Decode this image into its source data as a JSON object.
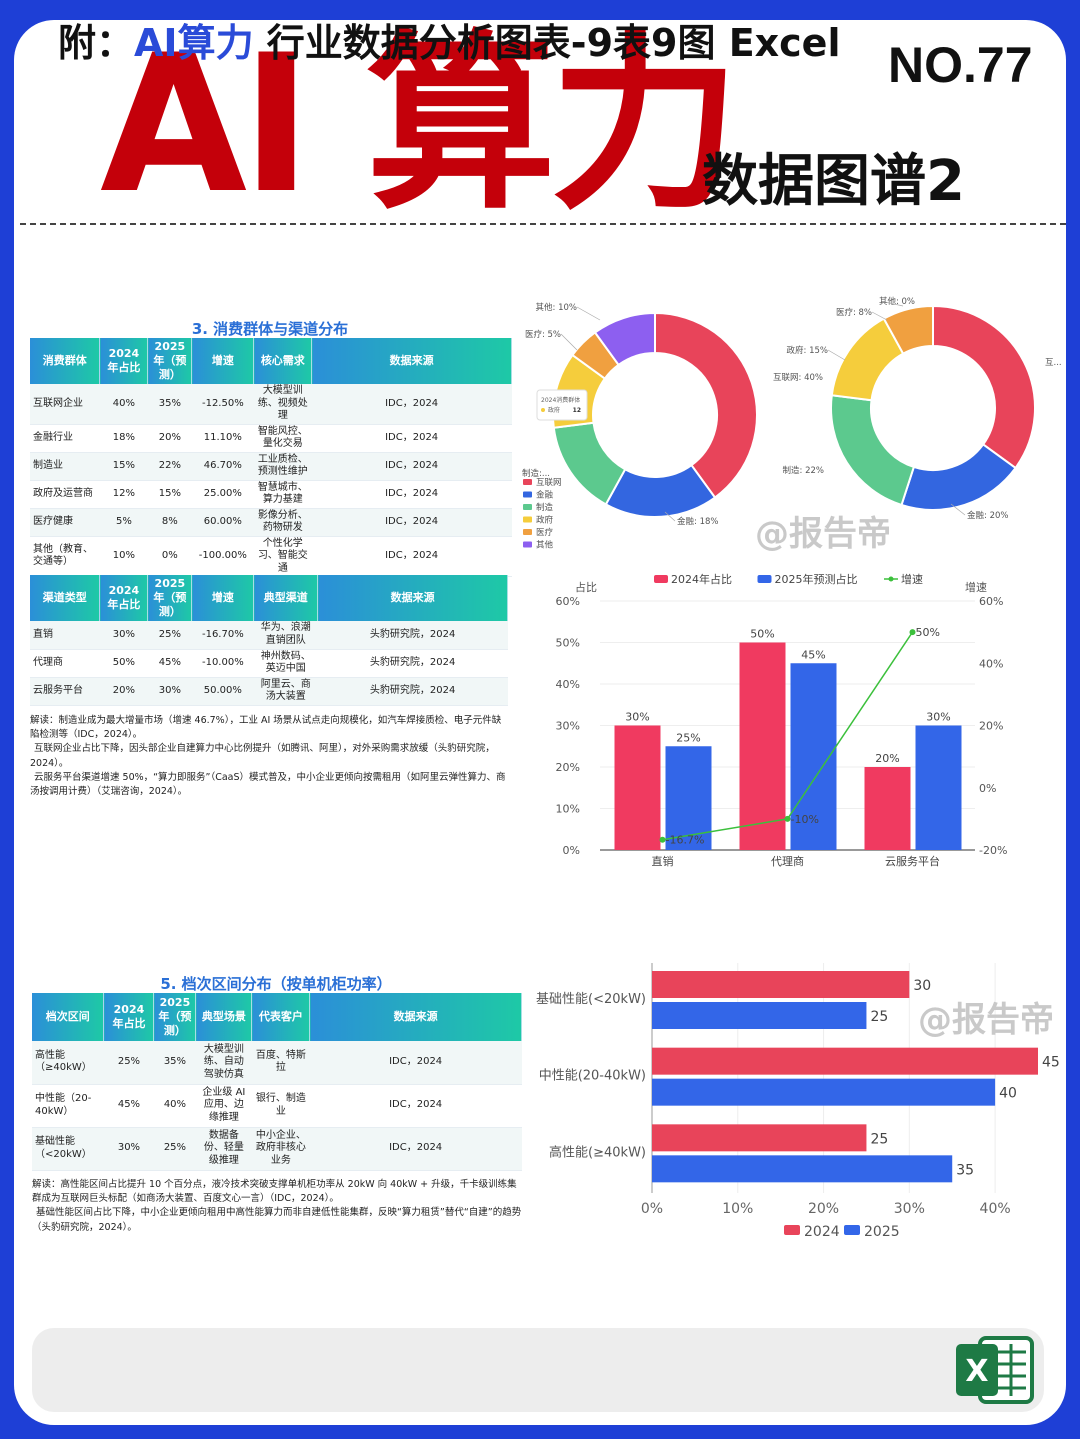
{
  "header": {
    "title": "AI 算力",
    "no": "NO.77",
    "subtitle": "数据图谱2"
  },
  "table3": {
    "title": "3. 消费群体与渠道分布",
    "headers": [
      "消费群体",
      "2024 年占比",
      "2025 年（预测）",
      "增速",
      "核心需求",
      "数据来源"
    ],
    "rows": [
      [
        "互联网企业",
        "40%",
        "35%",
        "-12.50%",
        "大模型训练、视频处理",
        "IDC，2024"
      ],
      [
        "金融行业",
        "18%",
        "20%",
        "11.10%",
        "智能风控、量化交易",
        "IDC，2024"
      ],
      [
        "制造业",
        "15%",
        "22%",
        "46.70%",
        "工业质检、预测性维护",
        "IDC，2024"
      ],
      [
        "政府及运营商",
        "12%",
        "15%",
        "25.00%",
        "智慧城市、算力基建",
        "IDC，2024"
      ],
      [
        "医疗健康",
        "5%",
        "8%",
        "60.00%",
        "影像分析、药物研发",
        "IDC，2024"
      ],
      [
        "其他（教育、交通等）",
        "10%",
        "0%",
        "-100.00%",
        "个性化学习、智能交通",
        "IDC，2024"
      ]
    ]
  },
  "table4": {
    "headers": [
      "渠道类型",
      "2024 年占比",
      "2025 年（预测）",
      "增速",
      "典型渠道",
      "数据来源"
    ],
    "rows": [
      [
        "直销",
        "30%",
        "25%",
        "-16.70%",
        "华为、浪潮直销团队",
        "头豹研究院，2024"
      ],
      [
        "代理商",
        "50%",
        "45%",
        "-10.00%",
        "神州数码、英迈中国",
        "头豹研究院，2024"
      ],
      [
        "云服务平台",
        "20%",
        "30%",
        "50.00%",
        "阿里云、商汤大装置",
        "头豹研究院，2024"
      ]
    ],
    "note": [
      "解读：制造业成为最大增量市场（增速 46.7%），工业 AI 场景从试点走向规模化，如汽车焊接质检、电子元件缺陷检测等（IDC，2024）。",
      "互联网企业占比下降，因头部企业自建算力中心比例提升（如腾讯、阿里），对外采购需求放缓（头豹研究院，2024）。",
      "云服务平台渠道增速 50%，“算力即服务”（CaaS）模式普及，中小企业更倾向按需租用（如阿里云弹性算力、商汤按调用计费）（艾瑞咨询，2024）。"
    ]
  },
  "table5": {
    "title": "5. 档次区间分布（按单机柜功率）",
    "headers": [
      "档次区间",
      "2024 年占比",
      "2025 年（预测）",
      "典型场景",
      "代表客户",
      "数据来源"
    ],
    "rows": [
      [
        "高性能（≥40kW）",
        "25%",
        "35%",
        "大模型训练、自动驾驶仿真",
        "百度、特斯拉",
        "IDC，2024"
      ],
      [
        "中性能（20-40kW）",
        "45%",
        "40%",
        "企业级 AI 应用、边缘推理",
        "银行、制造业",
        "IDC，2024"
      ],
      [
        "基础性能（<20kW）",
        "30%",
        "25%",
        "数据备份、轻量级推理",
        "中小企业、政府非核心业务",
        "IDC，2024"
      ]
    ],
    "note": [
      "解读：高性能区间占比提升 10 个百分点，液冷技术突破支撑单机柜功率从 20kW 向 40kW + 升级，千卡级训练集群成为互联网巨头标配（如商汤大装置、百度文心一言）（IDC，2024）。",
      "基础性能区间占比下降，中小企业更倾向租用中高性能算力而非自建低性能集群，反映“算力租赁”替代“自建”的趋势（头豹研究院，2024）。"
    ]
  },
  "donuts": {
    "tooltip": {
      "title": "2024消费群体",
      "name": "政府",
      "value": "12"
    },
    "legend": [
      "互联网",
      "金融",
      "制造",
      "政府",
      "医疗",
      "其他"
    ],
    "colors": [
      "#e8445a",
      "#3366e0",
      "#5cc98e",
      "#f5cd3c",
      "#f0a040",
      "#8d5ff0"
    ],
    "d2024": {
      "values": [
        40,
        18,
        15,
        12,
        5,
        10
      ],
      "labels": [
        "互联网: 40%",
        "金融: 18%",
        "制造: 15%",
        "政府: 12%",
        "医疗: 5%",
        "其他: 10%"
      ],
      "visible_labels": [
        "其他: 10%",
        "医疗: 5%",
        "金融: 18%",
        "制造:..."
      ]
    },
    "d2025": {
      "values": [
        35,
        20,
        22,
        15,
        8,
        0
      ],
      "visible_labels": [
        "其他: 0%",
        "医疗: 8%",
        "政府: 15%",
        "互联网: 40%",
        "制造: 22%",
        "金融: 20%",
        "互..."
      ]
    }
  },
  "watermark": "@报告帝",
  "chart_data": [
    {
      "type": "bar",
      "categories": [
        "直销",
        "代理商",
        "云服务平台"
      ],
      "series": [
        {
          "name": "2024年占比",
          "values": [
            30,
            50,
            20
          ],
          "color": "#f03a60"
        },
        {
          "name": "2025年预测占比",
          "values": [
            25,
            45,
            30
          ],
          "color": "#3366e8"
        },
        {
          "name": "增速",
          "type": "line",
          "values": [
            -16.7,
            -10,
            50
          ],
          "color": "#3cc03c",
          "labels": [
            "-16.7%",
            "-10%",
            "50%"
          ]
        }
      ],
      "ylabel": "占比",
      "y2label": "增速",
      "ylim": [
        0,
        60
      ],
      "y2lim": [
        -20,
        60
      ],
      "yticks": [
        "0%",
        "10%",
        "20%",
        "30%",
        "40%",
        "50%",
        "60%"
      ],
      "y2ticks": [
        "-20%",
        "0%",
        "20%",
        "40%",
        "60%"
      ]
    },
    {
      "type": "bar",
      "orientation": "horizontal",
      "categories": [
        "基础性能(<20kW)",
        "中性能(20-40kW)",
        "高性能(≥40kW)"
      ],
      "series": [
        {
          "name": "2024",
          "values": [
            30,
            45,
            25
          ],
          "color": "#e8445a"
        },
        {
          "name": "2025",
          "values": [
            25,
            40,
            35
          ],
          "color": "#3366e8"
        }
      ],
      "xlim": [
        0,
        45
      ],
      "xticks": [
        "0%",
        "10%",
        "20%",
        "30%",
        "40%"
      ]
    }
  ],
  "footer": {
    "prefix": "附：",
    "highlight": "AI算力",
    "rest": " 行业数据分析图表-9表9图 Excel",
    "excel_letter": "X"
  }
}
